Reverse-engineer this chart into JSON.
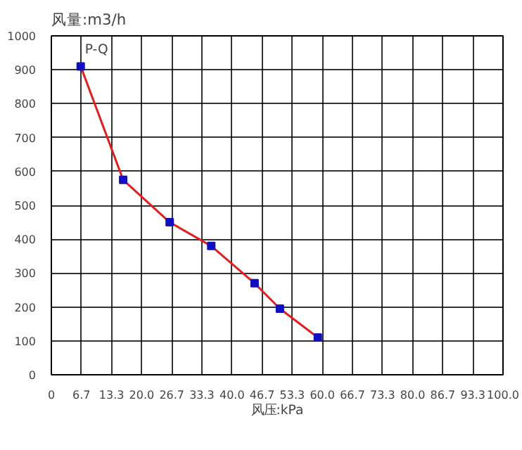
{
  "chart_data": {
    "type": "line",
    "xlabel": "风压:kPa",
    "ylabel": "风量:m3/h",
    "annotations": [
      {
        "text": "P-Q",
        "x": 6.5,
        "y": 910
      }
    ],
    "series": [
      {
        "color": "#e02020",
        "x": [
          6.5,
          15.9,
          26.2,
          35.4,
          45.0,
          50.6,
          59.0
        ],
        "values": [
          910,
          575,
          450,
          380,
          270,
          195,
          110
        ]
      }
    ],
    "marker": "square",
    "line_style": "solid",
    "grid": true,
    "xlim": [
      0,
      100
    ],
    "ylim": [
      0,
      1000
    ],
    "xticks": [
      {
        "value": 0,
        "label": "0"
      },
      {
        "value": 6.667,
        "label": "6.7"
      },
      {
        "value": 13.333,
        "label": "13.3"
      },
      {
        "value": 20,
        "label": "20.0"
      },
      {
        "value": 26.667,
        "label": "26.7"
      },
      {
        "value": 33.333,
        "label": "33.3"
      },
      {
        "value": 40,
        "label": "40.0"
      },
      {
        "value": 46.667,
        "label": "46.7"
      },
      {
        "value": 53.333,
        "label": "53.3"
      },
      {
        "value": 60,
        "label": "60.0"
      },
      {
        "value": 66.667,
        "label": "66.7"
      },
      {
        "value": 73.333,
        "label": "73.3"
      },
      {
        "value": 80,
        "label": "80.0"
      },
      {
        "value": 86.667,
        "label": "86.7"
      },
      {
        "value": 93.333,
        "label": "93.3"
      },
      {
        "value": 100,
        "label": "100.0"
      }
    ],
    "yticks": [
      0,
      100,
      200,
      300,
      400,
      500,
      600,
      700,
      800,
      900,
      1000
    ]
  }
}
